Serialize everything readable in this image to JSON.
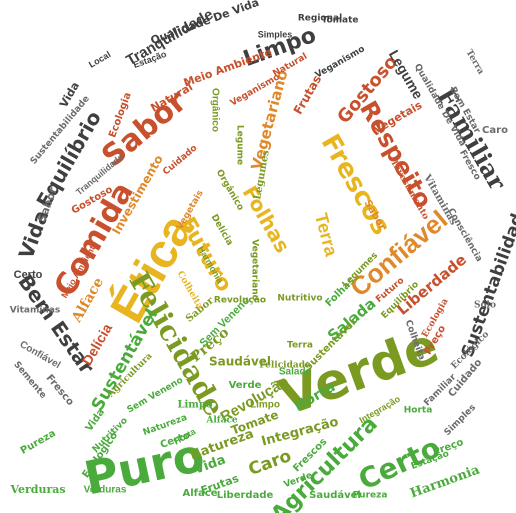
{
  "image": {
    "description_free": true,
    "palette": {
      "dark": "#3f3f3f",
      "grey": "#6b6b6b",
      "red": "#c8502d",
      "orange": "#e0892a",
      "yellow": "#e8b520",
      "olive": "#7a9a22",
      "green": "#4aab3c",
      "lightgreen": "#8cc63f"
    },
    "words": [
      "Verde",
      "Puro",
      "Ética",
      "Felicidade",
      "Comida",
      "Sabor",
      "Certo",
      "Confiável",
      "Frescos",
      "Respeito",
      "Familiar",
      "Limpo",
      "Tranquilidade",
      "Vida",
      "Equilíbrio",
      "Bem Estar",
      "Agricultura",
      "Harmonia",
      "Sustentável",
      "Sustentabilidade",
      "Futuro",
      "Folhas",
      "Terra",
      "Liberdade",
      "Preço",
      "Salada",
      "Horta",
      "Revolução",
      "Natureza",
      "Integração",
      "Tomate",
      "Alface",
      "Delícia",
      "Saudável",
      "Gostoso",
      "Investimento",
      "Vegetariano",
      "Legume",
      "Legumes",
      "Frutas",
      "Meio Ambiente",
      "Natural",
      "Orgânico",
      "Ecologia",
      "Vegetais",
      "Verduras",
      "Caro",
      "Sem Veneno",
      "Pureza",
      "Qualidade De Vida",
      "Veganismo",
      "Ecológico",
      "Vitaminas",
      "Cuidado",
      "Nutritivo",
      "Fresco",
      "Simples",
      "Estação",
      "Colheita",
      "Solo",
      "Semente",
      "Regional",
      "Local",
      "Consciência"
    ]
  }
}
